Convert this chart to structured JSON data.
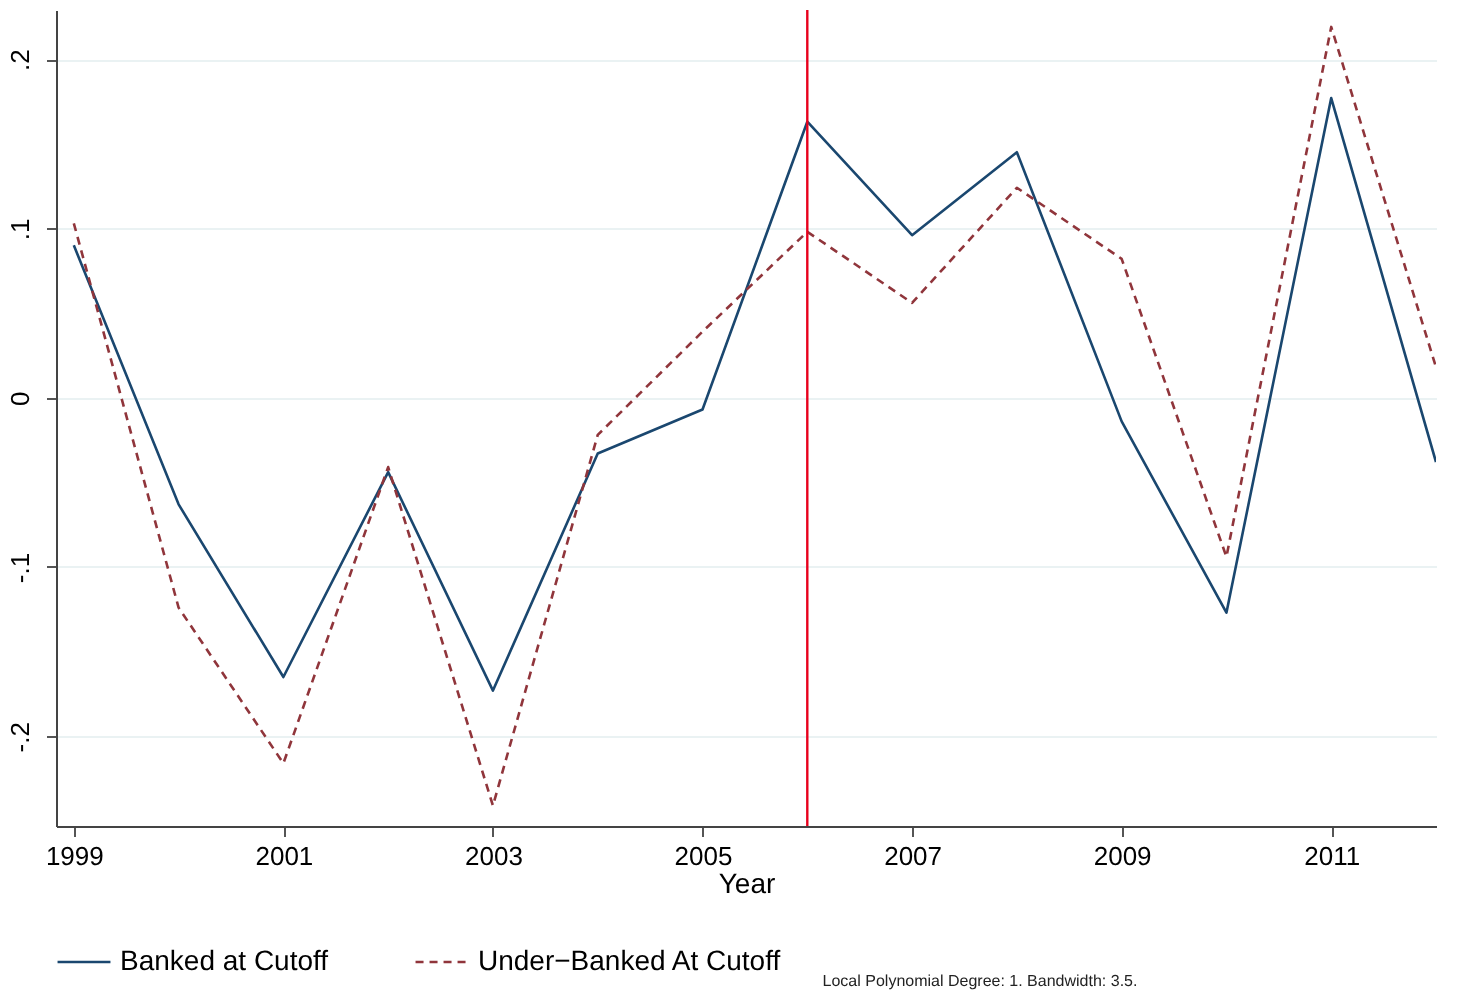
{
  "chart_data": {
    "type": "line",
    "xlabel": "Year",
    "x": [
      1999,
      2000,
      2001,
      2002,
      2003,
      2004,
      2005,
      2006,
      2007,
      2008,
      2009,
      2010,
      2011,
      2012
    ],
    "series": [
      {
        "name": "Banked at Cutoff",
        "color": "#1a476f",
        "line_style": "solid",
        "values": [
          0.09,
          -0.063,
          -0.165,
          -0.044,
          -0.173,
          -0.033,
          -0.007,
          0.163,
          0.096,
          0.145,
          -0.014,
          -0.127,
          0.177,
          -0.038
        ]
      },
      {
        "name": "Under−Banked At Cutoff",
        "color": "#90353b",
        "line_style": "dashed",
        "values": [
          0.103,
          -0.124,
          -0.216,
          -0.041,
          -0.241,
          -0.022,
          0.039,
          0.098,
          0.056,
          0.124,
          0.082,
          -0.094,
          0.219,
          0.018
        ]
      }
    ],
    "xlim": [
      1998.83,
      2012
    ],
    "xticks": [
      1999,
      2001,
      2003,
      2005,
      2007,
      2009,
      2011
    ],
    "ylim": [
      -0.253,
      0.229
    ],
    "yticks": [
      {
        "value": -0.2,
        "label": "-.2"
      },
      {
        "value": -0.1,
        "label": "-.1"
      },
      0,
      {
        "value": 0.1,
        "label": ".1"
      },
      {
        "value": 0.2,
        "label": ".2"
      }
    ],
    "ref_lines": [
      {
        "axis": "x",
        "value": 2006,
        "color": "#e8001c"
      }
    ],
    "annotations": [
      "Local Polynomial Degree: 1. Bandwidth: 3.5."
    ],
    "grid": "y",
    "legend": "bottom",
    "marker": "none"
  }
}
